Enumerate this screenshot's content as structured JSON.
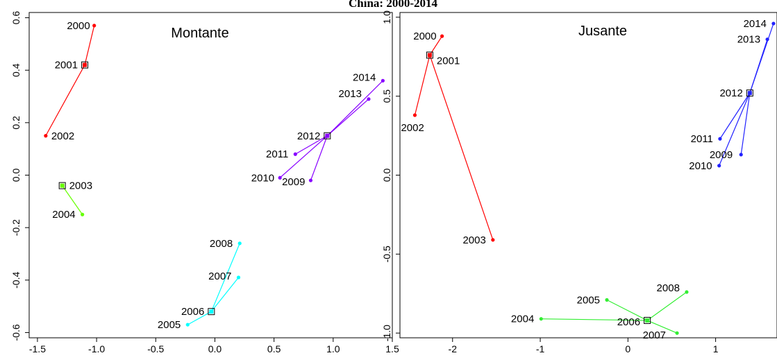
{
  "title": "China: 2000-2014",
  "chart_data": [
    {
      "type": "scatter",
      "title": "Montante",
      "xlim": [
        -1.57,
        1.5
      ],
      "ylim": [
        -0.62,
        0.62
      ],
      "xticks": [
        -1.5,
        -1.0,
        -0.5,
        0.0,
        0.5,
        1.0,
        1.5
      ],
      "xtick_labels": [
        "-1.5",
        "-1.0",
        "-0.5",
        "0.0",
        "0.5",
        "1.0",
        "1.5"
      ],
      "yticks": [
        -0.6,
        -0.4,
        -0.2,
        0.0,
        0.2,
        0.4,
        0.6
      ],
      "ytick_labels": [
        "-0.6",
        "-0.4",
        "-0.2",
        "0.0",
        "0.2",
        "0.4",
        "0.6"
      ],
      "clusters": [
        {
          "color": "#ff0000",
          "center": [
            -1.1,
            0.42
          ],
          "points": [
            {
              "label": "2000",
              "x": -1.02,
              "y": 0.57
            },
            {
              "label": "2001",
              "x": -1.1,
              "y": 0.42
            },
            {
              "label": "2002",
              "x": -1.43,
              "y": 0.15
            }
          ]
        },
        {
          "color": "#66ff00",
          "center": [
            -1.29,
            -0.04
          ],
          "points": [
            {
              "label": "2003",
              "x": -1.29,
              "y": -0.04
            },
            {
              "label": "2004",
              "x": -1.12,
              "y": -0.15
            }
          ]
        },
        {
          "color": "#00ffff",
          "center": [
            -0.03,
            -0.52
          ],
          "points": [
            {
              "label": "2005",
              "x": -0.23,
              "y": -0.57
            },
            {
              "label": "2006",
              "x": -0.03,
              "y": -0.52
            },
            {
              "label": "2007",
              "x": 0.2,
              "y": -0.39
            },
            {
              "label": "2008",
              "x": 0.21,
              "y": -0.26
            }
          ]
        },
        {
          "color": "#8800ff",
          "center": [
            0.95,
            0.15
          ],
          "points": [
            {
              "label": "2009",
              "x": 0.81,
              "y": -0.02
            },
            {
              "label": "2010",
              "x": 0.55,
              "y": -0.01
            },
            {
              "label": "2011",
              "x": 0.68,
              "y": 0.08
            },
            {
              "label": "2012",
              "x": 0.95,
              "y": 0.15
            },
            {
              "label": "2013",
              "x": 1.3,
              "y": 0.29
            },
            {
              "label": "2014",
              "x": 1.42,
              "y": 0.36
            }
          ]
        }
      ]
    },
    {
      "type": "scatter",
      "title": "Jusante",
      "xlim": [
        -2.6,
        1.7
      ],
      "ylim": [
        -1.03,
        1.03
      ],
      "xticks": [
        -2,
        -1,
        0,
        1
      ],
      "xtick_labels": [
        "-2",
        "-1",
        "0",
        "1"
      ],
      "yticks": [
        -1.0,
        -0.5,
        0.0,
        0.5,
        1.0
      ],
      "ytick_labels": [
        "-1.0",
        "-0.5",
        "0.0",
        "0.5",
        "1.0"
      ],
      "clusters": [
        {
          "color": "#ff0000",
          "center": [
            -2.26,
            0.76
          ],
          "points": [
            {
              "label": "2000",
              "x": -2.12,
              "y": 0.88
            },
            {
              "label": "2001",
              "x": -2.26,
              "y": 0.76
            },
            {
              "label": "2002",
              "x": -2.43,
              "y": 0.38
            },
            {
              "label": "2003",
              "x": -1.54,
              "y": -0.41
            }
          ]
        },
        {
          "color": "#33ee33",
          "center": [
            0.22,
            -0.92
          ],
          "points": [
            {
              "label": "2004",
              "x": -0.99,
              "y": -0.91
            },
            {
              "label": "2005",
              "x": -0.24,
              "y": -0.79
            },
            {
              "label": "2006",
              "x": 0.22,
              "y": -0.92
            },
            {
              "label": "2007",
              "x": 0.56,
              "y": -1.0
            },
            {
              "label": "2008",
              "x": 0.67,
              "y": -0.74
            }
          ]
        },
        {
          "color": "#2222ff",
          "center": [
            1.39,
            0.52
          ],
          "points": [
            {
              "label": "2009",
              "x": 1.29,
              "y": 0.13
            },
            {
              "label": "2010",
              "x": 1.04,
              "y": 0.06
            },
            {
              "label": "2011",
              "x": 1.05,
              "y": 0.23
            },
            {
              "label": "2012",
              "x": 1.39,
              "y": 0.52
            },
            {
              "label": "2013",
              "x": 1.59,
              "y": 0.86
            },
            {
              "label": "2014",
              "x": 1.66,
              "y": 0.96
            }
          ]
        }
      ]
    }
  ]
}
